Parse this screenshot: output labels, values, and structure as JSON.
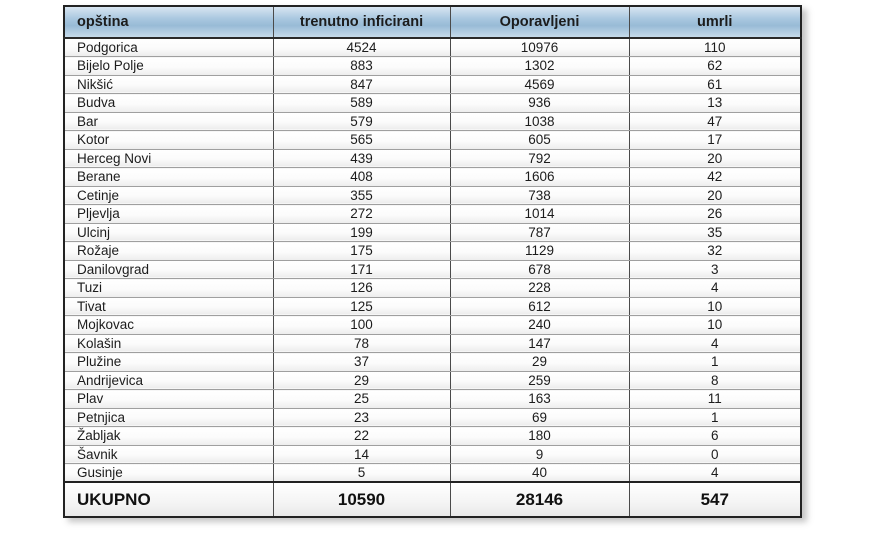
{
  "table": {
    "headers": [
      "opština",
      "trenutno inficirani",
      "Oporavljeni",
      "umrli"
    ],
    "rows": [
      {
        "opstina": "Podgorica",
        "trenutno_inficirani": 4524,
        "oporavljeni": 10976,
        "umrli": 110
      },
      {
        "opstina": "Bijelo Polje",
        "trenutno_inficirani": 883,
        "oporavljeni": 1302,
        "umrli": 62
      },
      {
        "opstina": "Nikšić",
        "trenutno_inficirani": 847,
        "oporavljeni": 4569,
        "umrli": 61
      },
      {
        "opstina": "Budva",
        "trenutno_inficirani": 589,
        "oporavljeni": 936,
        "umrli": 13
      },
      {
        "opstina": "Bar",
        "trenutno_inficirani": 579,
        "oporavljeni": 1038,
        "umrli": 47
      },
      {
        "opstina": "Kotor",
        "trenutno_inficirani": 565,
        "oporavljeni": 605,
        "umrli": 17
      },
      {
        "opstina": "Herceg Novi",
        "trenutno_inficirani": 439,
        "oporavljeni": 792,
        "umrli": 20
      },
      {
        "opstina": "Berane",
        "trenutno_inficirani": 408,
        "oporavljeni": 1606,
        "umrli": 42
      },
      {
        "opstina": "Cetinje",
        "trenutno_inficirani": 355,
        "oporavljeni": 738,
        "umrli": 20
      },
      {
        "opstina": "Pljevlja",
        "trenutno_inficirani": 272,
        "oporavljeni": 1014,
        "umrli": 26
      },
      {
        "opstina": "Ulcinj",
        "trenutno_inficirani": 199,
        "oporavljeni": 787,
        "umrli": 35
      },
      {
        "opstina": "Rožaje",
        "trenutno_inficirani": 175,
        "oporavljeni": 1129,
        "umrli": 32
      },
      {
        "opstina": "Danilovgrad",
        "trenutno_inficirani": 171,
        "oporavljeni": 678,
        "umrli": 3
      },
      {
        "opstina": "Tuzi",
        "trenutno_inficirani": 126,
        "oporavljeni": 228,
        "umrli": 4
      },
      {
        "opstina": "Tivat",
        "trenutno_inficirani": 125,
        "oporavljeni": 612,
        "umrli": 10
      },
      {
        "opstina": "Mojkovac",
        "trenutno_inficirani": 100,
        "oporavljeni": 240,
        "umrli": 10
      },
      {
        "opstina": "Kolašin",
        "trenutno_inficirani": 78,
        "oporavljeni": 147,
        "umrli": 4
      },
      {
        "opstina": "Plužine",
        "trenutno_inficirani": 37,
        "oporavljeni": 29,
        "umrli": 1
      },
      {
        "opstina": "Andrijevica",
        "trenutno_inficirani": 29,
        "oporavljeni": 259,
        "umrli": 8
      },
      {
        "opstina": "Plav",
        "trenutno_inficirani": 25,
        "oporavljeni": 163,
        "umrli": 11
      },
      {
        "opstina": "Petnjica",
        "trenutno_inficirani": 23,
        "oporavljeni": 69,
        "umrli": 1
      },
      {
        "opstina": "Žabljak",
        "trenutno_inficirani": 22,
        "oporavljeni": 180,
        "umrli": 6
      },
      {
        "opstina": "Šavnik",
        "trenutno_inficirani": 14,
        "oporavljeni": 9,
        "umrli": 0
      },
      {
        "opstina": "Gusinje",
        "trenutno_inficirani": 5,
        "oporavljeni": 40,
        "umrli": 4
      }
    ],
    "total": {
      "label": "UKUPNO",
      "trenutno_inficirani": 10590,
      "oporavljeni": 28146,
      "umrli": 547
    }
  },
  "colors": {
    "header_blue_top": "#d8e5f1",
    "header_blue_mid": "#a0c0da",
    "header_blue_bottom": "#c6dbeb",
    "outer_border": "#222222",
    "row_separator": "#9f9f9f",
    "text": "#1c1c1c"
  }
}
